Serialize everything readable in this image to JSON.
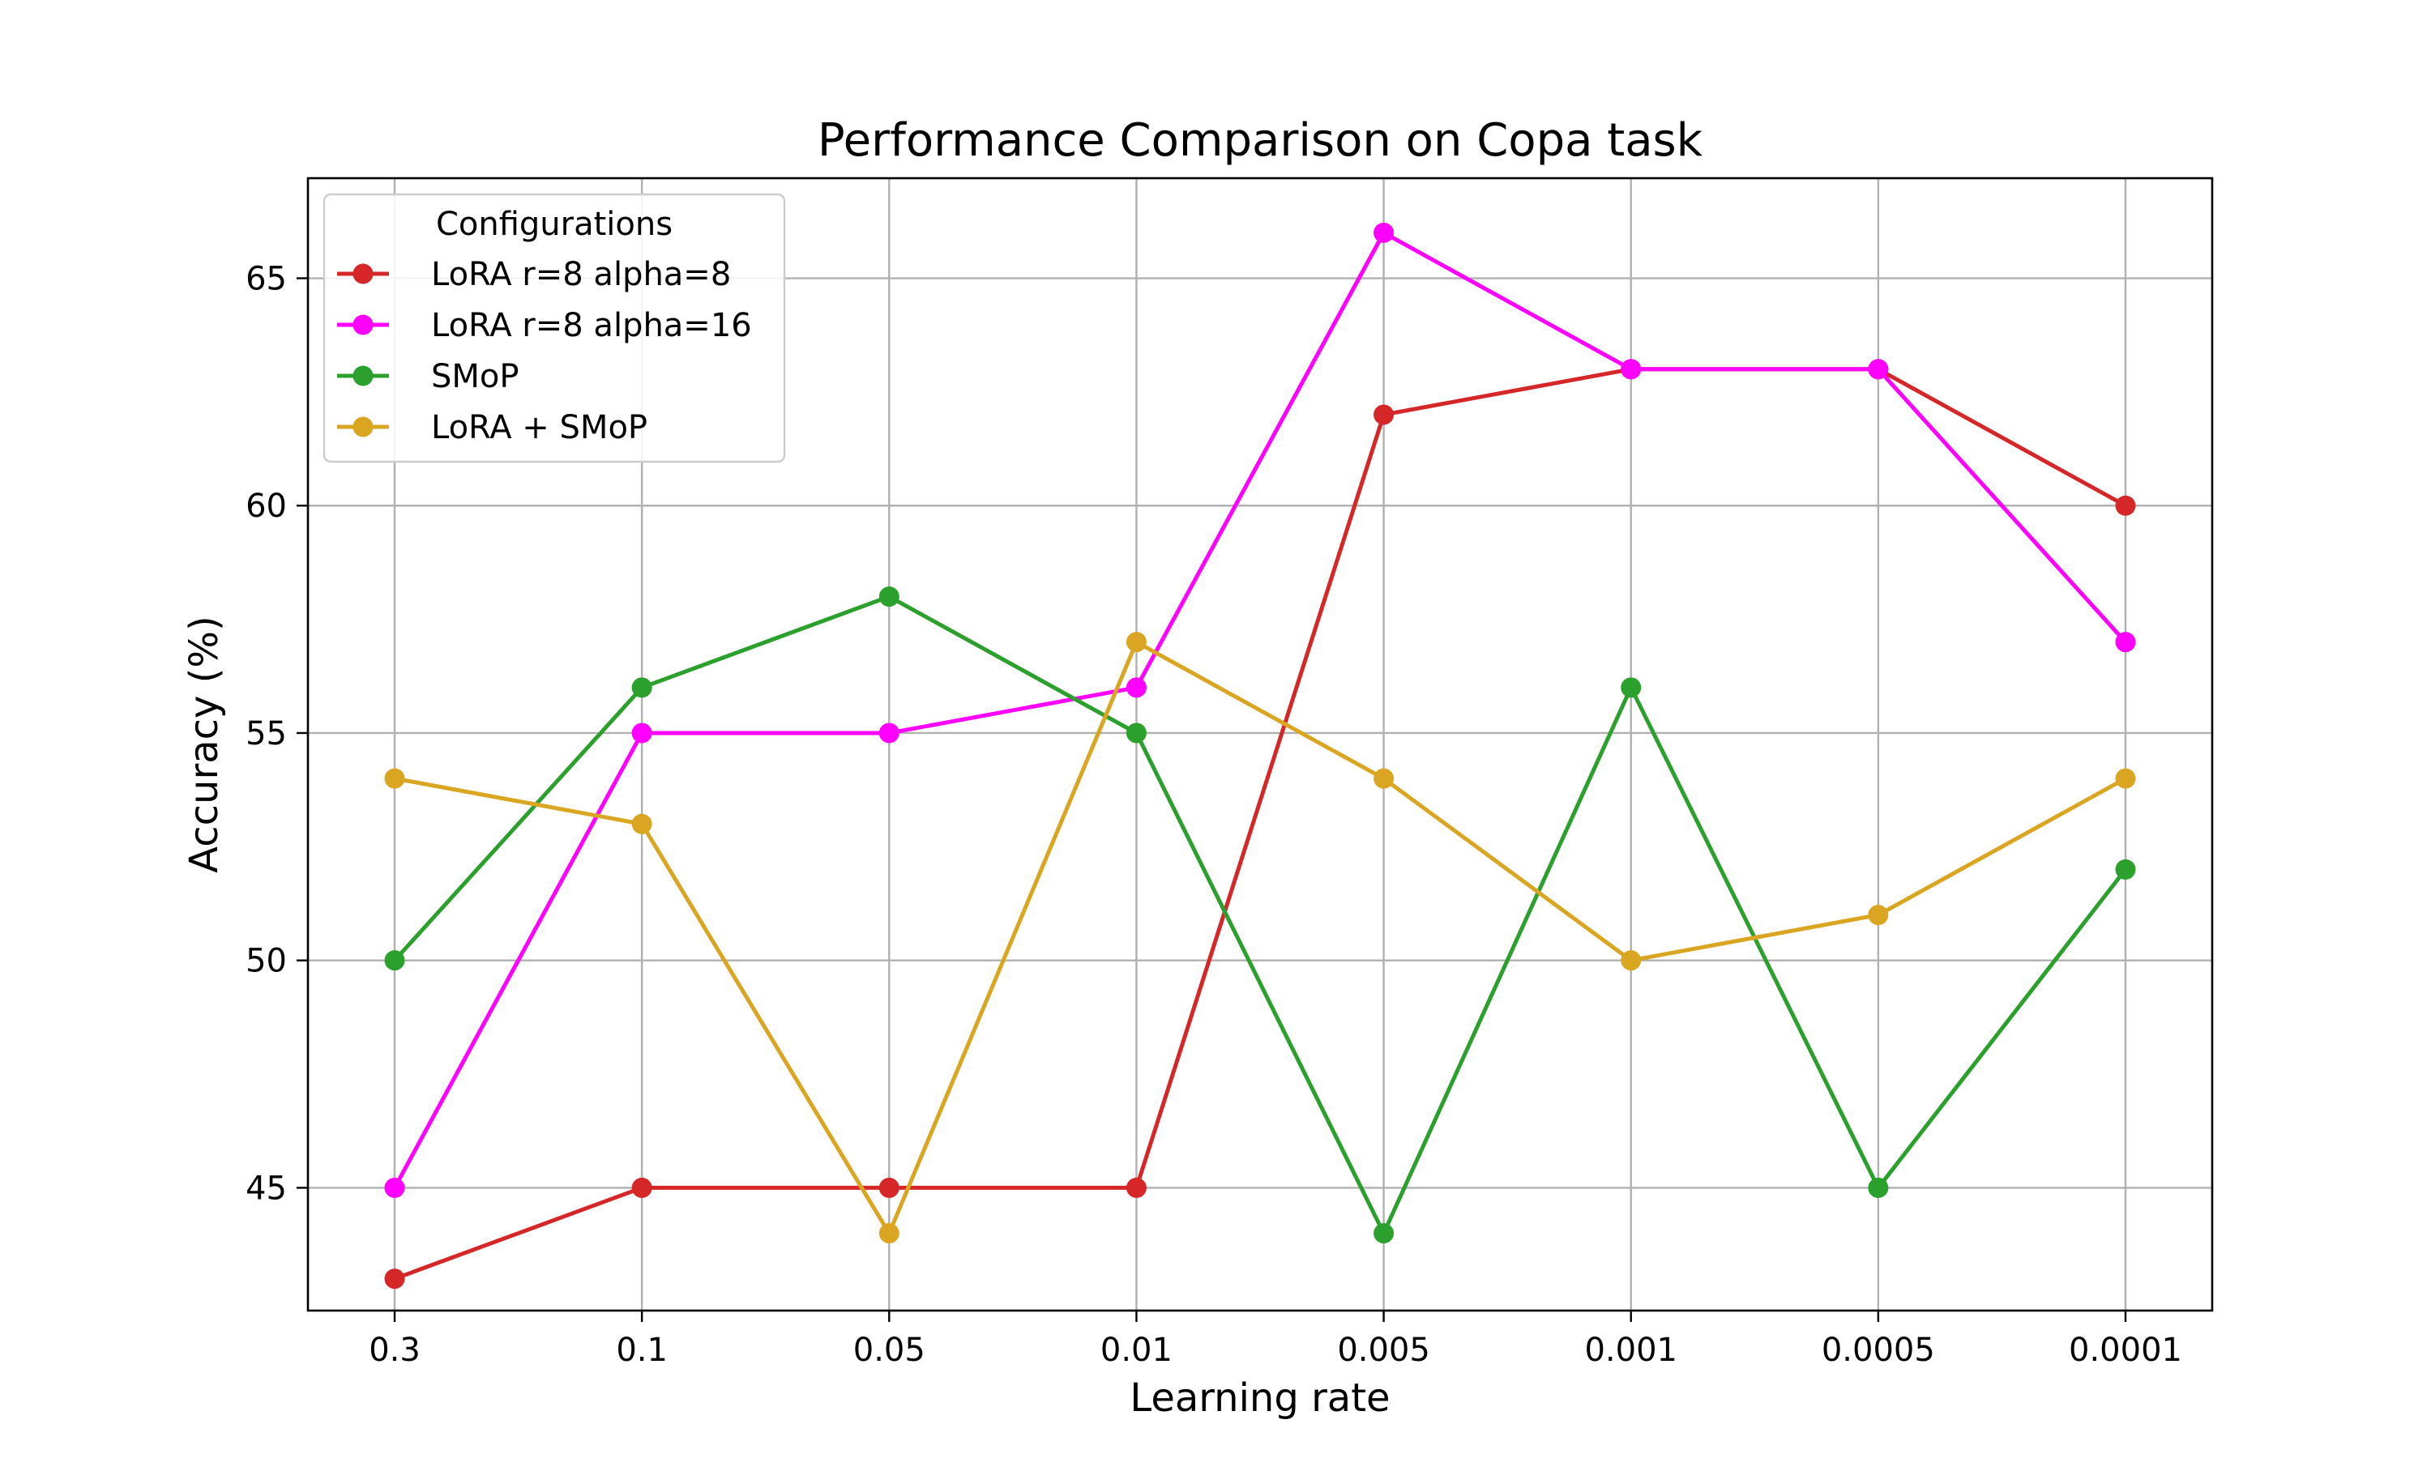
{
  "chart_data": {
    "type": "line",
    "title": "Performance Comparison on Copa task",
    "xlabel": "Learning rate",
    "ylabel": "Accuracy (%)",
    "categories": [
      "0.3",
      "0.1",
      "0.05",
      "0.01",
      "0.005",
      "0.001",
      "0.0005",
      "0.0001"
    ],
    "yticks": [
      45,
      50,
      55,
      60,
      65
    ],
    "ylim": [
      42.3,
      67.2
    ],
    "grid": true,
    "legend": {
      "title": "Configurations",
      "placement": "top-left"
    },
    "series": [
      {
        "name": "LoRA r=8 alpha=8",
        "color": "#d62728",
        "values": [
          43,
          45,
          45,
          45,
          62,
          63,
          63,
          60
        ]
      },
      {
        "name": "LoRA r=8 alpha=16",
        "color": "#ff00ff",
        "values": [
          45,
          55,
          55,
          56,
          66,
          63,
          63,
          57
        ]
      },
      {
        "name": "SMoP",
        "color": "#2ca02c",
        "values": [
          50,
          56,
          58,
          55,
          44,
          56,
          45,
          52
        ]
      },
      {
        "name": "LoRA + SMoP",
        "color": "#daa520",
        "values": [
          54,
          53,
          44,
          57,
          54,
          50,
          51,
          54
        ]
      }
    ]
  }
}
